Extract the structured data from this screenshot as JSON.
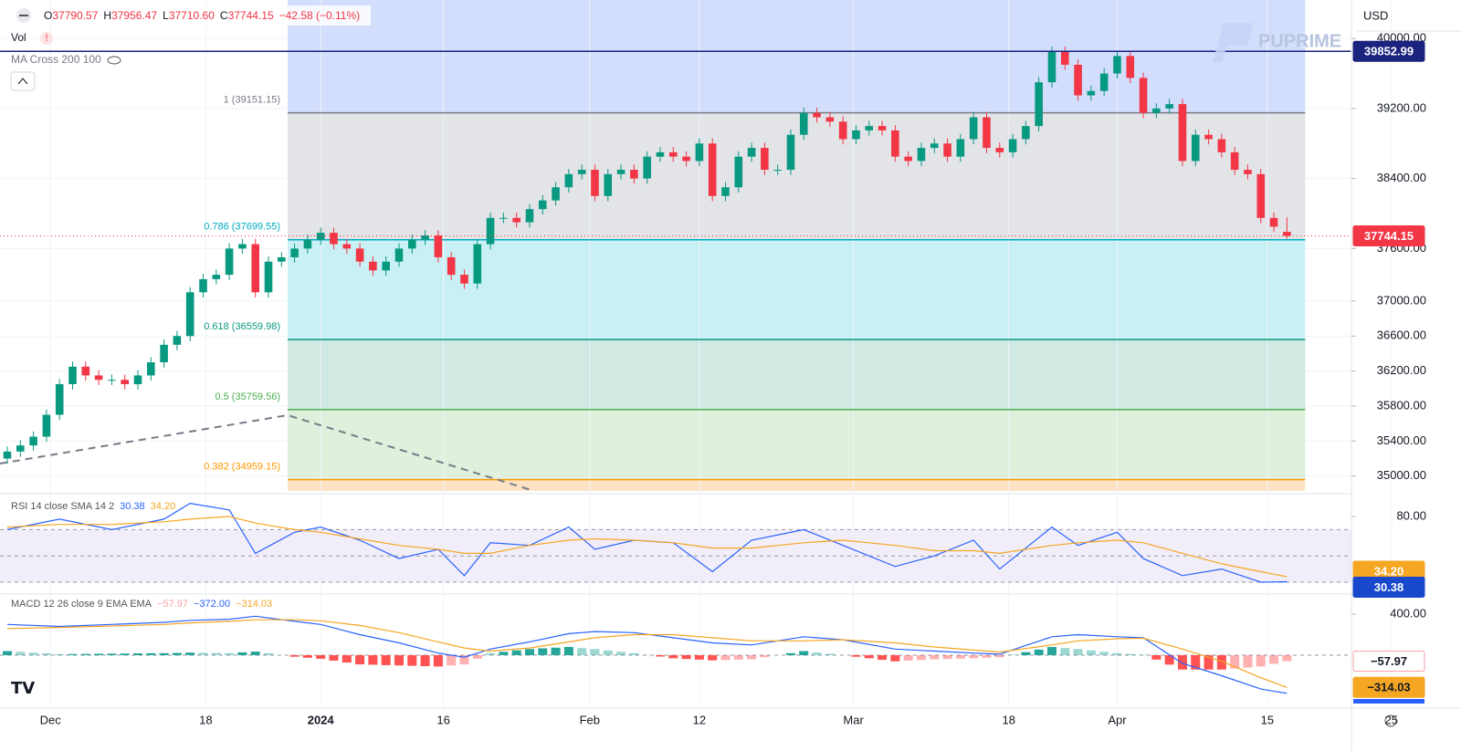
{
  "header": {
    "ohlc": [
      {
        "k": "O",
        "v": "37790.57"
      },
      {
        "k": "H",
        "v": "37956.47"
      },
      {
        "k": "L",
        "v": "37710.60"
      },
      {
        "k": "C",
        "v": "37744.15"
      }
    ],
    "change": "−42.58 (−0.11%)",
    "vol": "Vol",
    "ma": "MA Cross 200 100",
    "currency": "USD",
    "brand": "PUPRIME"
  },
  "chart_data": [
    {
      "type": "candlestick",
      "up_color": "#089981",
      "down_color": "#f23645",
      "grid": true,
      "xlim": [
        -0.56,
        102.94
      ],
      "ylim": [
        34830,
        40440
      ],
      "yticks": [
        {
          "value": 40000,
          "label": "40000.00"
        },
        {
          "value": 39200,
          "label": "39200.00"
        },
        {
          "value": 38400,
          "label": "38400.00"
        },
        {
          "value": 37600,
          "label": "37600.00"
        },
        {
          "value": 37000,
          "label": "37000.00"
        },
        {
          "value": 36600,
          "label": "36600.00"
        },
        {
          "value": 36200,
          "label": "36200.00"
        },
        {
          "value": 35800,
          "label": "35800.00"
        },
        {
          "value": 35400,
          "label": "35400.00"
        },
        {
          "value": 35000,
          "label": "35000.00"
        }
      ],
      "xticks": [
        {
          "value": 3.3,
          "label": "Dec"
        },
        {
          "value": 15.2,
          "label": "18"
        },
        {
          "value": 24,
          "label": "2024"
        },
        {
          "value": 33.4,
          "label": "16"
        },
        {
          "value": 44.6,
          "label": "Feb"
        },
        {
          "value": 53,
          "label": "12"
        },
        {
          "value": 64.8,
          "label": "Mar"
        },
        {
          "value": 76.7,
          "label": "18"
        },
        {
          "value": 85,
          "label": "Apr"
        },
        {
          "value": 96.5,
          "label": "15"
        },
        {
          "value": 106,
          "label": "25"
        }
      ],
      "candles": [
        [
          35200,
          35340,
          35140,
          35280
        ],
        [
          35280,
          35410,
          35220,
          35350
        ],
        [
          35350,
          35510,
          35290,
          35450
        ],
        [
          35450,
          35760,
          35390,
          35700
        ],
        [
          35700,
          36110,
          35640,
          36050
        ],
        [
          36050,
          36310,
          35990,
          36250
        ],
        [
          36250,
          36310,
          36090,
          36150
        ],
        [
          36150,
          36210,
          36040,
          36100
        ],
        [
          36100,
          36160,
          36040,
          36100
        ],
        [
          36100,
          36160,
          35990,
          36050
        ],
        [
          36050,
          36210,
          35990,
          36150
        ],
        [
          36150,
          36360,
          36090,
          36300
        ],
        [
          36300,
          36560,
          36240,
          36500
        ],
        [
          36500,
          36660,
          36440,
          36600
        ],
        [
          36600,
          37160,
          36540,
          37100
        ],
        [
          37100,
          37310,
          37040,
          37250
        ],
        [
          37250,
          37360,
          37190,
          37300
        ],
        [
          37300,
          37660,
          37240,
          37600
        ],
        [
          37600,
          37710,
          37540,
          37650
        ],
        [
          37650,
          37710,
          37040,
          37100
        ],
        [
          37100,
          37510,
          37040,
          37450
        ],
        [
          37450,
          37560,
          37390,
          37500
        ],
        [
          37500,
          37660,
          37440,
          37600
        ],
        [
          37600,
          37760,
          37540,
          37700
        ],
        [
          37700,
          37840,
          37640,
          37780
        ],
        [
          37780,
          37840,
          37590,
          37650
        ],
        [
          37650,
          37710,
          37540,
          37600
        ],
        [
          37600,
          37660,
          37390,
          37450
        ],
        [
          37450,
          37510,
          37290,
          37350
        ],
        [
          37350,
          37510,
          37290,
          37450
        ],
        [
          37450,
          37660,
          37390,
          37600
        ],
        [
          37600,
          37760,
          37540,
          37700
        ],
        [
          37700,
          37810,
          37640,
          37750
        ],
        [
          37750,
          37810,
          37440,
          37500
        ],
        [
          37500,
          37560,
          37240,
          37300
        ],
        [
          37300,
          37360,
          37140,
          37200
        ],
        [
          37200,
          37710,
          37140,
          37650
        ],
        [
          37650,
          38010,
          37590,
          37950
        ],
        [
          37950,
          38010,
          37890,
          37950
        ],
        [
          37950,
          38010,
          37840,
          37900
        ],
        [
          37900,
          38110,
          37840,
          38050
        ],
        [
          38050,
          38210,
          37990,
          38150
        ],
        [
          38150,
          38360,
          38090,
          38300
        ],
        [
          38300,
          38510,
          38240,
          38450
        ],
        [
          38450,
          38560,
          38390,
          38500
        ],
        [
          38500,
          38560,
          38140,
          38200
        ],
        [
          38200,
          38510,
          38140,
          38450
        ],
        [
          38450,
          38560,
          38390,
          38500
        ],
        [
          38500,
          38560,
          38340,
          38400
        ],
        [
          38400,
          38710,
          38340,
          38650
        ],
        [
          38650,
          38760,
          38590,
          38700
        ],
        [
          38700,
          38760,
          38590,
          38650
        ],
        [
          38650,
          38710,
          38540,
          38600
        ],
        [
          38600,
          38860,
          38540,
          38800
        ],
        [
          38800,
          38860,
          38140,
          38200
        ],
        [
          38200,
          38360,
          38140,
          38300
        ],
        [
          38300,
          38710,
          38240,
          38650
        ],
        [
          38650,
          38810,
          38590,
          38750
        ],
        [
          38750,
          38810,
          38440,
          38500
        ],
        [
          38500,
          38560,
          38440,
          38500
        ],
        [
          38500,
          38960,
          38440,
          38900
        ],
        [
          38900,
          39210,
          38840,
          39150
        ],
        [
          39150,
          39210,
          39040,
          39100
        ],
        [
          39100,
          39160,
          38990,
          39050
        ],
        [
          39050,
          39110,
          38790,
          38850
        ],
        [
          38850,
          39010,
          38790,
          38950
        ],
        [
          38950,
          39060,
          38890,
          39000
        ],
        [
          39000,
          39060,
          38890,
          38950
        ],
        [
          38950,
          39010,
          38590,
          38650
        ],
        [
          38650,
          38710,
          38540,
          38600
        ],
        [
          38600,
          38810,
          38540,
          38750
        ],
        [
          38750,
          38860,
          38690,
          38800
        ],
        [
          38800,
          38860,
          38590,
          38650
        ],
        [
          38650,
          38910,
          38590,
          38850
        ],
        [
          38850,
          39160,
          38790,
          39100
        ],
        [
          39100,
          39160,
          38690,
          38750
        ],
        [
          38750,
          38810,
          38640,
          38700
        ],
        [
          38700,
          38910,
          38640,
          38850
        ],
        [
          38850,
          39060,
          38790,
          39000
        ],
        [
          39000,
          39560,
          38940,
          39500
        ],
        [
          39500,
          39910,
          39440,
          39850
        ],
        [
          39850,
          39910,
          39640,
          39700
        ],
        [
          39700,
          39760,
          39290,
          39350
        ],
        [
          39350,
          39460,
          39290,
          39400
        ],
        [
          39400,
          39660,
          39340,
          39600
        ],
        [
          39600,
          39860,
          39540,
          39800
        ],
        [
          39800,
          39860,
          39490,
          39550
        ],
        [
          39550,
          39610,
          39090,
          39150
        ],
        [
          39150,
          39260,
          39090,
          39200
        ],
        [
          39200,
          39310,
          39140,
          39250
        ],
        [
          39250,
          39310,
          38540,
          38600
        ],
        [
          38600,
          38960,
          38540,
          38900
        ],
        [
          38900,
          38960,
          38790,
          38850
        ],
        [
          38850,
          38910,
          38640,
          38700
        ],
        [
          38700,
          38760,
          38440,
          38500
        ],
        [
          38500,
          38560,
          38390,
          38450
        ],
        [
          38450,
          38510,
          37890,
          37950
        ],
        [
          37950,
          38010,
          37790,
          37850
        ],
        [
          37790.57,
          37956.47,
          37710.6,
          37744.15
        ]
      ],
      "fib_x": [
        21.47,
        99.4
      ],
      "fib_top_fill": "#d3defd",
      "fib_levels": [
        {
          "label": "1 (39151.15)",
          "value": 39151.15,
          "color": "#787b86",
          "fill": "#e3e4e8"
        },
        {
          "label": "0.786 (37699.55)",
          "value": 37699.55,
          "color": "#00acc1",
          "fill": "#c9f1f5"
        },
        {
          "label": "0.618 (36559.98)",
          "value": 36559.98,
          "color": "#089981",
          "fill": "#d0e9e2"
        },
        {
          "label": "0.5 (35759.56)",
          "value": 35759.56,
          "color": "#4caf50",
          "fill": "#dff0dc"
        },
        {
          "label": "0.382 (34959.15)",
          "value": 34959.15,
          "color": "#ff9800",
          "fill": "#fde3c4"
        }
      ],
      "hline": {
        "value": 39852.99,
        "label": "39852.99",
        "color": "#1a237e"
      },
      "last_price": {
        "value": 37744.15,
        "label": "37744.15",
        "color": "#f23645"
      }
    },
    {
      "type": "line",
      "title": "RSI 14 close SMA 14 2",
      "ylim": [
        21.7,
        94.6
      ],
      "yticks": [
        {
          "value": 80,
          "label": "80.00"
        }
      ],
      "band": [
        30,
        70
      ],
      "band_lines": [
        70,
        50,
        30
      ],
      "series": [
        {
          "color": "#2962ff",
          "value_label": "30.38",
          "badge": "#1848cc",
          "x": [
            0,
            4,
            8,
            12,
            14,
            17,
            19,
            22,
            24,
            27,
            30,
            33,
            35,
            37,
            40,
            43,
            45,
            48,
            51,
            54,
            57,
            61,
            64,
            68,
            71,
            74,
            76,
            80,
            82,
            85,
            87,
            90,
            93,
            96,
            98
          ],
          "values": [
            70,
            78,
            70,
            78,
            90,
            85,
            52,
            68,
            72,
            62,
            48,
            55,
            35,
            60,
            58,
            72,
            55,
            62,
            60,
            38,
            62,
            70,
            58,
            42,
            50,
            62,
            40,
            72,
            58,
            68,
            48,
            35,
            40,
            30,
            30.38
          ]
        },
        {
          "color": "#f5a623",
          "value_label": "34.20",
          "badge": "#f5a623",
          "x": [
            0,
            4,
            8,
            12,
            14,
            17,
            19,
            22,
            24,
            27,
            30,
            33,
            35,
            37,
            40,
            43,
            45,
            48,
            51,
            54,
            57,
            61,
            64,
            68,
            71,
            74,
            76,
            80,
            82,
            85,
            87,
            90,
            93,
            96,
            98
          ],
          "values": [
            72,
            74,
            74,
            76,
            78,
            80,
            75,
            70,
            68,
            63,
            58,
            55,
            52,
            52,
            58,
            62,
            63,
            62,
            60,
            56,
            56,
            60,
            62,
            58,
            54,
            54,
            52,
            58,
            60,
            62,
            60,
            52,
            44,
            38,
            34.2
          ]
        }
      ]
    },
    {
      "type": "macd",
      "title": "MACD 12 26 close 9 EMA EMA",
      "ylim": [
        -507,
        587
      ],
      "yticks": [
        {
          "value": 400,
          "label": "400.00"
        }
      ],
      "band_lines": [
        0
      ],
      "histogram": {
        "value_label": "−57.97",
        "pos_color": "#26a69a",
        "neg_color": "#ff5252",
        "values": [
          40,
          32,
          25,
          18,
          10,
          11,
          12,
          14,
          15,
          16,
          18,
          19,
          20,
          22,
          25,
          23,
          22,
          20,
          28,
          35,
          18,
          2,
          -15,
          -25,
          -35,
          -53,
          -72,
          -90,
          -93,
          -97,
          -100,
          -103,
          -107,
          -110,
          -100,
          -90,
          -35,
          20,
          33,
          47,
          60,
          67,
          73,
          80,
          70,
          60,
          47,
          33,
          20,
          3,
          -13,
          -30,
          -37,
          -43,
          -50,
          -47,
          -43,
          -40,
          -20,
          0,
          20,
          40,
          27,
          13,
          0,
          -15,
          -30,
          -45,
          -60,
          -53,
          -47,
          -40,
          -37,
          -33,
          -30,
          -25,
          -20,
          5,
          30,
          55,
          80,
          70,
          60,
          47,
          33,
          20,
          12,
          5,
          -43,
          -92,
          -140,
          -140,
          -140,
          -140,
          -130,
          -120,
          -110,
          -84,
          -57.97
        ]
      },
      "series": [
        {
          "color": "#2962ff",
          "value_label": "−372.00",
          "badge": "#2962ff",
          "x": [
            0,
            4,
            8,
            12,
            14,
            17,
            19,
            22,
            24,
            27,
            30,
            33,
            35,
            37,
            40,
            43,
            45,
            48,
            51,
            54,
            57,
            61,
            64,
            68,
            71,
            74,
            76,
            80,
            82,
            85,
            87,
            90,
            93,
            96,
            98
          ],
          "values": [
            300,
            280,
            300,
            320,
            340,
            350,
            380,
            330,
            300,
            200,
            120,
            20,
            -20,
            60,
            130,
            210,
            230,
            220,
            170,
            120,
            100,
            180,
            150,
            60,
            40,
            20,
            10,
            180,
            200,
            180,
            170,
            -80,
            -200,
            -330,
            -372
          ]
        },
        {
          "color": "#f5a623",
          "value_label": "−314.03",
          "badge": "#f5a623",
          "x": [
            0,
            4,
            8,
            12,
            14,
            17,
            19,
            22,
            24,
            27,
            30,
            33,
            35,
            37,
            40,
            43,
            45,
            48,
            51,
            54,
            57,
            61,
            64,
            68,
            71,
            74,
            76,
            80,
            82,
            85,
            87,
            90,
            93,
            96,
            98
          ],
          "values": [
            260,
            270,
            285,
            300,
            315,
            330,
            345,
            345,
            335,
            290,
            220,
            130,
            70,
            40,
            70,
            130,
            170,
            200,
            200,
            170,
            140,
            140,
            150,
            120,
            80,
            50,
            30,
            100,
            140,
            160,
            165,
            60,
            -60,
            -220,
            -314.03
          ]
        }
      ]
    }
  ]
}
